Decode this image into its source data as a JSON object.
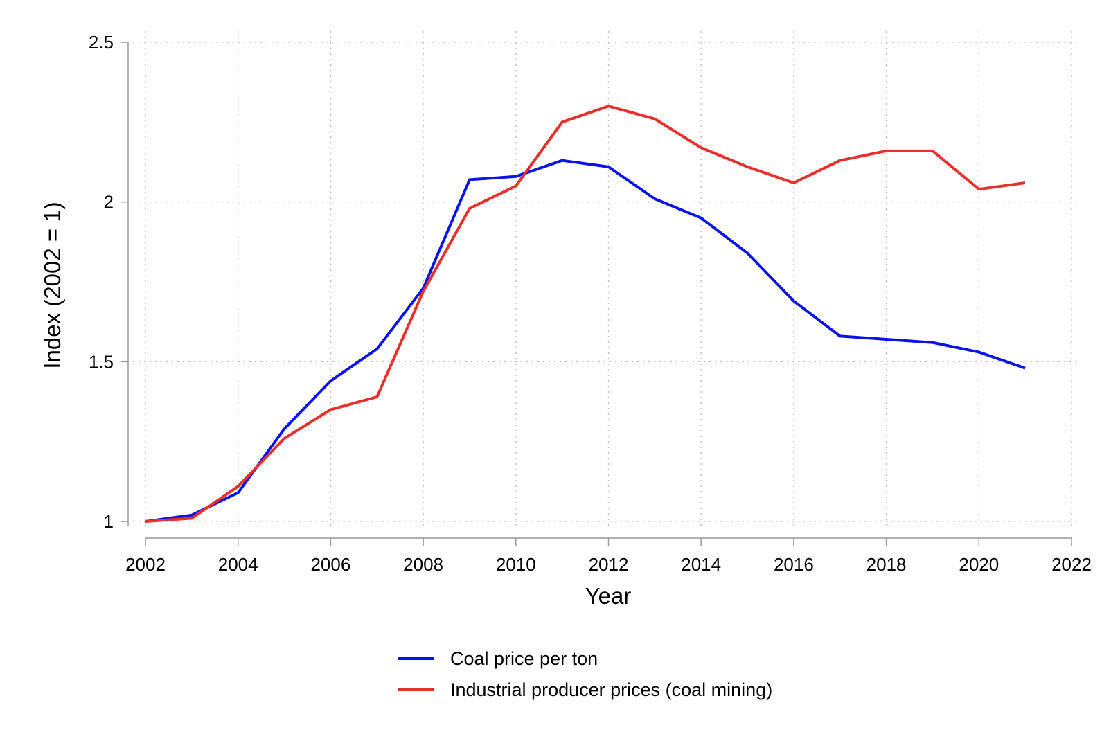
{
  "chart_data": {
    "type": "line",
    "xlabel": "Year",
    "ylabel": "Index (2002 = 1)",
    "xlim": [
      2002,
      2022
    ],
    "ylim": [
      1,
      2.5
    ],
    "x_ticks": [
      {
        "value": 2002,
        "label": "2002"
      },
      {
        "value": 2004,
        "label": "2004"
      },
      {
        "value": 2006,
        "label": "2006"
      },
      {
        "value": 2008,
        "label": "2008"
      },
      {
        "value": 2010,
        "label": "2010"
      },
      {
        "value": 2012,
        "label": "2012"
      },
      {
        "value": 2014,
        "label": "2014"
      },
      {
        "value": 2016,
        "label": "2016"
      },
      {
        "value": 2018,
        "label": "2018"
      },
      {
        "value": 2020,
        "label": "2020"
      },
      {
        "value": 2022,
        "label": "2022"
      }
    ],
    "y_ticks": [
      {
        "value": 1,
        "label": "1"
      },
      {
        "value": 1.5,
        "label": "1.5"
      },
      {
        "value": 2,
        "label": "2"
      },
      {
        "value": 2.5,
        "label": "2.5"
      }
    ],
    "grid": true,
    "legend_position": "bottom",
    "x": [
      2002,
      2003,
      2004,
      2005,
      2006,
      2007,
      2008,
      2009,
      2010,
      2011,
      2012,
      2013,
      2014,
      2015,
      2016,
      2017,
      2018,
      2019,
      2020,
      2021
    ],
    "series": [
      {
        "name": "Coal price per ton",
        "color": "#0a14e8",
        "values": [
          1.0,
          1.02,
          1.09,
          1.29,
          1.44,
          1.54,
          1.73,
          2.07,
          2.08,
          2.13,
          2.11,
          2.01,
          1.95,
          1.84,
          1.69,
          1.58,
          1.57,
          1.56,
          1.53,
          1.48
        ]
      },
      {
        "name": "Industrial producer prices (coal mining)",
        "color": "#e8302a",
        "values": [
          1.0,
          1.01,
          1.11,
          1.26,
          1.35,
          1.39,
          1.72,
          1.98,
          2.05,
          2.25,
          2.3,
          2.26,
          2.17,
          2.11,
          2.06,
          2.13,
          2.16,
          2.16,
          2.04,
          2.06
        ]
      }
    ]
  }
}
